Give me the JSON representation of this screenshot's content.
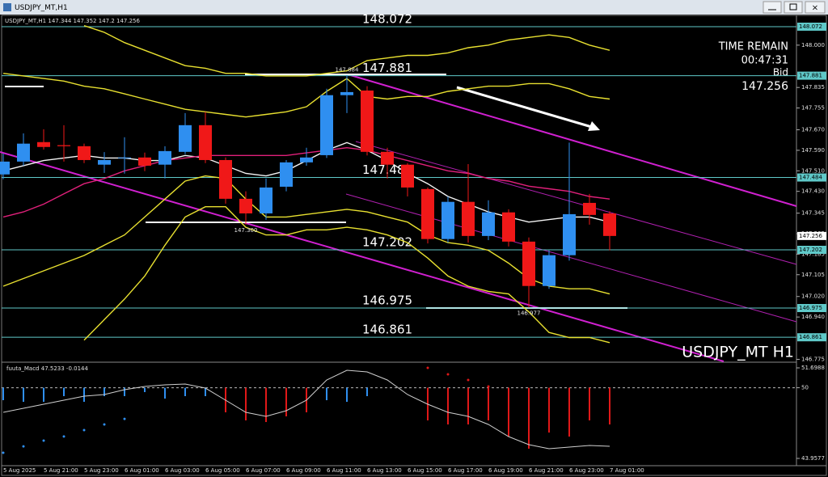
{
  "chart_data": [
    {
      "type": "candlestick",
      "title": "USDJPY_MT,H1",
      "categories": [
        "5 Aug 2025",
        null,
        "5 Aug 21:00",
        null,
        "5 Aug 23:00",
        null,
        "6 Aug 01:00",
        null,
        "6 Aug 03:00",
        null,
        "6 Aug 05:00",
        null,
        "6 Aug 07:00",
        null,
        "6 Aug 09:00",
        null,
        "6 Aug 11:00",
        null,
        "6 Aug 13:00",
        null,
        "6 Aug 15:00",
        null,
        "6 Aug 17:00",
        null,
        "6 Aug 19:00",
        null,
        "6 Aug 21:00",
        null,
        "6 Aug 23:00",
        null,
        "7 Aug 01:00"
      ],
      "open": [
        147.496,
        147.546,
        147.622,
        147.61,
        147.606,
        147.534,
        147.559,
        147.562,
        147.534,
        147.584,
        147.688,
        147.552,
        147.401,
        147.344,
        147.448,
        147.543,
        147.571,
        147.805,
        147.823,
        147.584,
        147.534,
        147.439,
        147.244,
        147.389,
        147.256,
        147.348,
        147.234,
        147.061,
        147.181,
        147.385,
        147.344
      ],
      "high": [
        147.577,
        147.656,
        147.672,
        147.688,
        147.616,
        147.583,
        147.641,
        147.581,
        147.606,
        147.735,
        147.74,
        147.562,
        147.43,
        147.48,
        147.552,
        147.6,
        147.83,
        147.884,
        147.84,
        147.6,
        147.54,
        147.445,
        147.41,
        147.536,
        147.395,
        147.36,
        147.25,
        147.2,
        147.62,
        147.42,
        147.352
      ],
      "low": [
        147.477,
        147.53,
        147.593,
        147.546,
        147.54,
        147.502,
        147.499,
        147.509,
        147.48,
        147.575,
        147.54,
        147.382,
        147.3,
        147.319,
        147.43,
        147.53,
        147.56,
        147.735,
        147.57,
        147.48,
        147.41,
        147.227,
        147.23,
        147.23,
        147.24,
        147.215,
        146.977,
        147.05,
        147.16,
        147.3,
        147.2
      ],
      "close": [
        147.546,
        147.616,
        147.603,
        147.606,
        147.552,
        147.552,
        147.562,
        147.53,
        147.587,
        147.688,
        147.552,
        147.401,
        147.344,
        147.445,
        147.543,
        147.562,
        147.805,
        147.817,
        147.584,
        147.534,
        147.445,
        147.244,
        147.389,
        147.256,
        147.348,
        147.234,
        147.061,
        147.181,
        147.341,
        147.338,
        147.256
      ],
      "up_color": "#2f8ff0",
      "down_color": "#f01818",
      "lines": [
        {
          "color": "#e8e030",
          "values": [
            null,
            null,
            null,
            null,
            148.076,
            148.05,
            148.01,
            147.98,
            147.95,
            147.92,
            147.91,
            147.89,
            147.89,
            147.88,
            147.88,
            147.88,
            147.89,
            147.9,
            147.94,
            147.95,
            147.96,
            147.96,
            147.97,
            147.99,
            148.0,
            148.02,
            148.03,
            148.04,
            148.03,
            148.0,
            147.98
          ]
        },
        {
          "color": "#e8e030",
          "values": [
            147.89,
            147.88,
            147.87,
            147.86,
            147.84,
            147.83,
            147.81,
            147.79,
            147.77,
            147.75,
            147.74,
            147.73,
            147.72,
            147.73,
            147.74,
            147.76,
            147.82,
            147.87,
            147.8,
            147.79,
            147.8,
            147.8,
            147.82,
            147.83,
            147.84,
            147.84,
            147.85,
            147.85,
            147.83,
            147.8,
            147.79
          ]
        },
        {
          "color": "#f4f4f4",
          "values": [
            147.51,
            147.53,
            147.55,
            147.56,
            147.57,
            147.56,
            147.56,
            147.55,
            147.55,
            147.57,
            147.56,
            147.53,
            147.5,
            147.49,
            147.51,
            147.55,
            147.59,
            147.62,
            147.59,
            147.55,
            147.5,
            147.46,
            147.41,
            147.38,
            147.35,
            147.33,
            147.31,
            147.32,
            147.33,
            147.33,
            147.31
          ]
        },
        {
          "color": "#e0207a",
          "values": [
            147.33,
            147.35,
            147.38,
            147.42,
            147.46,
            147.48,
            147.51,
            147.53,
            147.55,
            147.56,
            147.57,
            147.57,
            147.57,
            147.57,
            147.57,
            147.58,
            147.59,
            147.6,
            147.59,
            147.57,
            147.55,
            147.53,
            147.51,
            147.5,
            147.48,
            147.47,
            147.45,
            147.44,
            147.43,
            147.41,
            147.4
          ]
        },
        {
          "color": "#e8e030",
          "values": [
            147.06,
            147.09,
            147.12,
            147.15,
            147.18,
            147.22,
            147.26,
            147.33,
            147.4,
            147.47,
            147.49,
            147.48,
            147.4,
            147.33,
            147.33,
            147.34,
            147.35,
            147.36,
            147.35,
            147.33,
            147.31,
            147.26,
            147.23,
            147.22,
            147.2,
            147.15,
            147.09,
            147.06,
            147.05,
            147.05,
            147.03
          ]
        },
        {
          "color": "#e8e030",
          "values": [
            null,
            null,
            null,
            null,
            146.85,
            146.93,
            147.01,
            147.1,
            147.22,
            147.33,
            147.37,
            147.37,
            147.29,
            147.26,
            147.26,
            147.28,
            147.28,
            147.29,
            147.28,
            147.26,
            147.23,
            147.17,
            147.1,
            147.06,
            147.04,
            147.03,
            146.96,
            146.88,
            146.86,
            146.86,
            146.84
          ]
        }
      ],
      "levels": [
        148.072,
        147.881,
        147.484,
        147.202,
        146.975,
        146.861
      ],
      "level_color": "#5fc9c9",
      "annotations": [
        147.884,
        {
          "value": 147.3,
          "label": "147.300"
        },
        146.977
      ],
      "ylim": [
        146.767,
        148.113
      ],
      "yticks": [
        {
          "value": 148,
          "label": "148.000"
        },
        147.835,
        147.755,
        {
          "value": 147.67,
          "label": "147.670"
        },
        {
          "value": 147.59,
          "label": "147.590"
        },
        {
          "value": 147.51,
          "label": "147.510"
        },
        {
          "value": 147.43,
          "label": "147.430"
        },
        147.345,
        147.265,
        147.185,
        147.105,
        {
          "value": 147.02,
          "label": "147.020"
        },
        {
          "value": 146.94,
          "label": "146.940"
        },
        146.775
      ],
      "time_remain_label": "TIME REMAIN",
      "time_remain": "00:47:31",
      "bid_label": "Bid",
      "bid": 147.256,
      "symbol_label": "USDJPY_MT H1"
    },
    {
      "type": "macd",
      "title": "fuuta_Macd",
      "readings": [
        47.5233,
        -0.0144
      ],
      "ylim": [
        43.9577,
        51.6988
      ],
      "yticks": [
        51.6988,
        50,
        43.9577
      ],
      "baseline": 50,
      "values": [
        48.934,
        48.796,
        48.796,
        49.28,
        48.796,
        49.28,
        49.28,
        49.625,
        49.072,
        49.28,
        49.28,
        47.897,
        47.206,
        47.068,
        47.552,
        47.897,
        48.934,
        48.796,
        49.28,
        null,
        null,
        47.206,
        46.86,
        46.86,
        47.206,
        45.824,
        44.787,
        46.169,
        45.824,
        47.206,
        46.86
      ],
      "bar_colors": [
        "#2f8ff0",
        "#2f8ff0",
        "#2f8ff0",
        "#2f8ff0",
        "#2f8ff0",
        "#2f8ff0",
        "#2f8ff0",
        "#2f8ff0",
        "#2f8ff0",
        "#2f8ff0",
        "#2f8ff0",
        "#e01818",
        "#e01818",
        "#e01818",
        "#e01818",
        "#e01818",
        "#2f8ff0",
        "#2f8ff0",
        "#2f8ff0",
        null,
        null,
        "#e01818",
        "#e01818",
        "#e01818",
        "#e01818",
        "#e01818",
        "#e01818",
        "#e01818",
        "#e01818",
        "#e01818",
        "#e01818"
      ],
      "signal": [
        47.897,
        48.243,
        48.588,
        48.934,
        49.28,
        49.418,
        49.833,
        50.109,
        50.248,
        50.316,
        49.971,
        48.934,
        47.897,
        47.552,
        48.036,
        48.934,
        50.662,
        51.491,
        51.353,
        50.662,
        49.418,
        48.588,
        47.897,
        47.552,
        46.86,
        45.824,
        45.132,
        44.787,
        44.925,
        45.063,
        44.994
      ],
      "signal_color": "#cfcfcf",
      "dots": [
        {
          "color": "#2f8ff0",
          "values": [
            44.44,
            44.99,
            45.48,
            45.83,
            46.38,
            46.86,
            47.34,
            null,
            null,
            null,
            null,
            null,
            null,
            null,
            null,
            null,
            null,
            null,
            null,
            null,
            null,
            null,
            null,
            null,
            null,
            null,
            null,
            null,
            null,
            null,
            null
          ]
        },
        {
          "color": "#e01818",
          "values": [
            null,
            null,
            null,
            null,
            null,
            null,
            null,
            null,
            null,
            null,
            null,
            null,
            null,
            null,
            null,
            null,
            null,
            null,
            null,
            null,
            null,
            51.7,
            51.15,
            50.66,
            50.11,
            null,
            null,
            null,
            null,
            null,
            null
          ]
        }
      ]
    }
  ]
}
